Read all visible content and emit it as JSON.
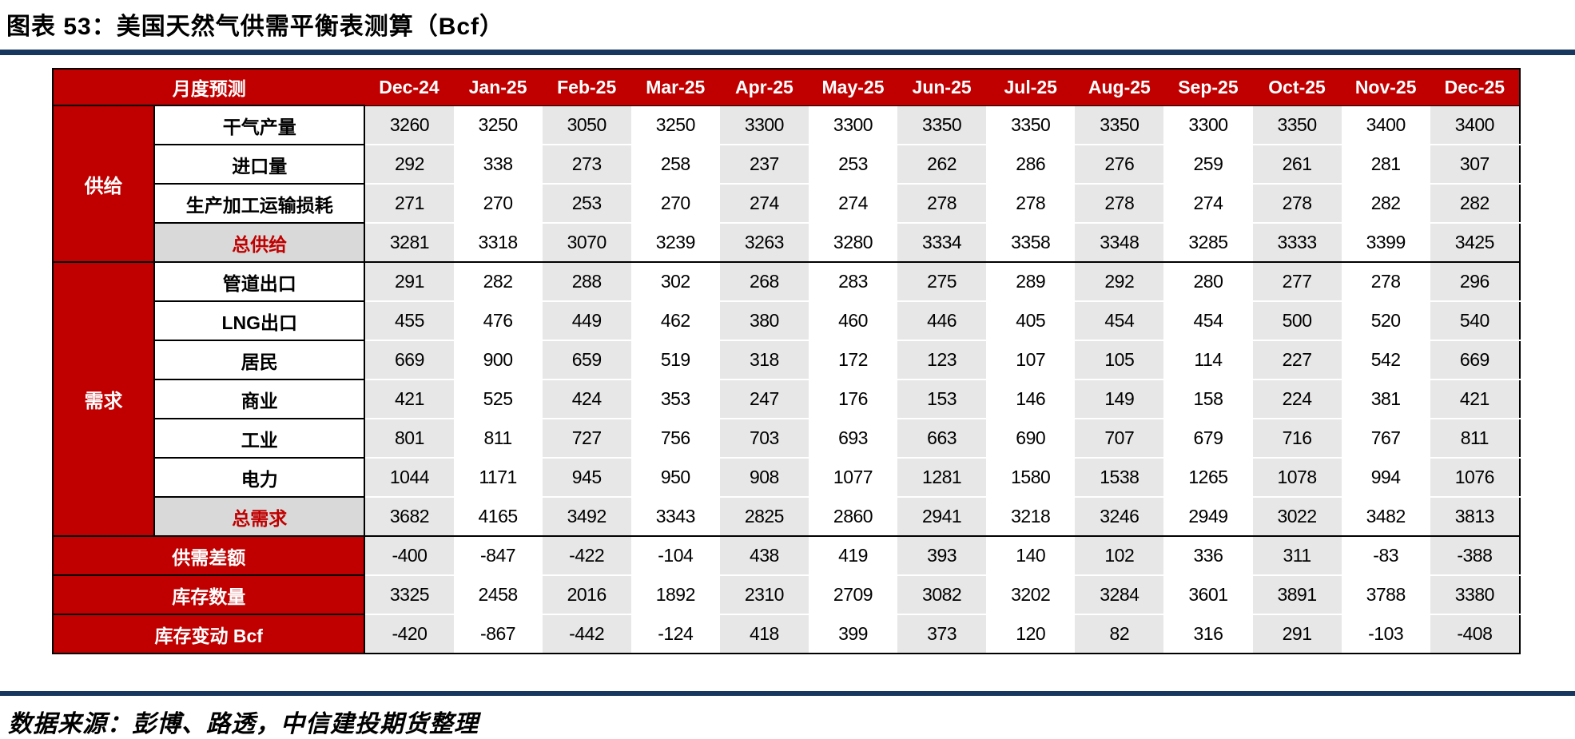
{
  "title": "图表 53：美国天然气供需平衡表测算（Bcf）",
  "source_note": "数据来源：彭博、路透，中信建投期货整理",
  "colors": {
    "header_red": "#C00000",
    "shaded_column": "#E8E7E7",
    "total_row_bg": "#D9D9D9",
    "total_row_text": "#C00000",
    "divider_navy": "#17375E"
  },
  "chart_data": {
    "type": "table",
    "title": "图表 53：美国天然气供需平衡表测算（Bcf）",
    "corner_header": "月度预测",
    "columns": [
      "Dec-24",
      "Jan-25",
      "Feb-25",
      "Mar-25",
      "Apr-25",
      "May-25",
      "Jun-25",
      "Jul-25",
      "Aug-25",
      "Sep-25",
      "Oct-25",
      "Nov-25",
      "Dec-25"
    ],
    "groups": [
      {
        "name": "供给",
        "rows": [
          {
            "label": "干气产量",
            "type": "normal",
            "values": [
              3260,
              3250,
              3050,
              3250,
              3300,
              3300,
              3350,
              3350,
              3350,
              3300,
              3350,
              3400,
              3400
            ]
          },
          {
            "label": "进口量",
            "type": "normal",
            "values": [
              292,
              338,
              273,
              258,
              237,
              253,
              262,
              286,
              276,
              259,
              261,
              281,
              307
            ]
          },
          {
            "label": "生产加工运输损耗",
            "type": "normal",
            "values": [
              271,
              270,
              253,
              270,
              274,
              274,
              278,
              278,
              278,
              274,
              278,
              282,
              282
            ]
          },
          {
            "label": "总供给",
            "type": "total",
            "values": [
              3281,
              3318,
              3070,
              3239,
              3263,
              3280,
              3334,
              3358,
              3348,
              3285,
              3333,
              3399,
              3425
            ]
          }
        ]
      },
      {
        "name": "需求",
        "rows": [
          {
            "label": "管道出口",
            "type": "normal",
            "values": [
              291,
              282,
              288,
              302,
              268,
              283,
              275,
              289,
              292,
              280,
              277,
              278,
              296
            ]
          },
          {
            "label": "LNG出口",
            "type": "normal",
            "values": [
              455,
              476,
              449,
              462,
              380,
              460,
              446,
              405,
              454,
              454,
              500,
              520,
              540
            ]
          },
          {
            "label": "居民",
            "type": "normal",
            "values": [
              669,
              900,
              659,
              519,
              318,
              172,
              123,
              107,
              105,
              114,
              227,
              542,
              669
            ]
          },
          {
            "label": "商业",
            "type": "normal",
            "values": [
              421,
              525,
              424,
              353,
              247,
              176,
              153,
              146,
              149,
              158,
              224,
              381,
              421
            ]
          },
          {
            "label": "工业",
            "type": "normal",
            "values": [
              801,
              811,
              727,
              756,
              703,
              693,
              663,
              690,
              707,
              679,
              716,
              767,
              811
            ]
          },
          {
            "label": "电力",
            "type": "normal",
            "values": [
              1044,
              1171,
              945,
              950,
              908,
              1077,
              1281,
              1580,
              1538,
              1265,
              1078,
              994,
              1076
            ]
          },
          {
            "label": "总需求",
            "type": "total",
            "values": [
              3682,
              4165,
              3492,
              3343,
              2825,
              2860,
              2941,
              3218,
              3246,
              2949,
              3022,
              3482,
              3813
            ]
          }
        ]
      }
    ],
    "summary_rows": [
      {
        "label": "供需差额",
        "values": [
          -400,
          -847,
          -422,
          -104,
          438,
          419,
          393,
          140,
          102,
          336,
          311,
          -83,
          -388
        ]
      },
      {
        "label": "库存数量",
        "values": [
          3325,
          2458,
          2016,
          1892,
          2310,
          2709,
          3082,
          3202,
          3284,
          3601,
          3891,
          3788,
          3380
        ]
      },
      {
        "label": "库存变动 Bcf",
        "values": [
          -420,
          -867,
          -442,
          -124,
          418,
          399,
          373,
          120,
          82,
          316,
          291,
          -103,
          -408
        ]
      }
    ]
  }
}
